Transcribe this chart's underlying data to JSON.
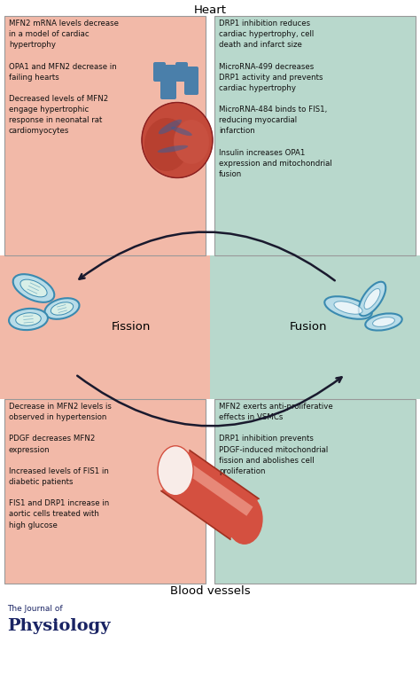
{
  "title_top": "Heart",
  "title_bottom": "Blood vessels",
  "top_left_text": "MFN2 mRNA levels decrease\nin a model of cardiac\nhypertrophy\n\nOPA1 and MFN2 decrease in\nfailing hearts\n\nDecreased levels of MFN2\nengage hypertrophic\nresponse in neonatal rat\ncardiomyocytes",
  "top_right_text": "DRP1 inhibition reduces\ncardiac hypertrophy, cell\ndeath and infarct size\n\nMicroRNA-499 decreases\nDRP1 activity and prevents\ncardiac hypertrophy\n\nMicroRNA-484 binds to FIS1,\nreducing myocardial\ninfarction\n\nInsulin increases OPA1\nexpression and mitochondrial\nfusion",
  "bottom_left_text": "Decrease in MFN2 levels is\nobserved in hypertension\n\nPDGF decreases MFN2\nexpression\n\nIncreased levels of FIS1 in\ndiabetic patients\n\nFIS1 and DRP1 increase in\naortic cells treated with\nhigh glucose",
  "bottom_right_text": "MFN2 exerts anti-proliferative\neffects in VSMCs\n\nDRP1 inhibition prevents\nPDGF-induced mitochondrial\nfission and abolishes cell\nproliferation",
  "fission_label": "Fission",
  "fusion_label": "Fusion",
  "bg_left_color": "#f2b9a8",
  "bg_right_color": "#b8d8cc",
  "box_border_color": "#999999",
  "text_color": "#111111",
  "journal_line1": "The Journal of",
  "journal_line2": "Physiology",
  "journal_color": "#1a2464",
  "mito_fill": "#b8dce8",
  "mito_inner": "#d8efe8",
  "mito_edge": "#3a8ab0",
  "arrow_color": "#1a1a2e",
  "heart_red": "#c44a3a",
  "heart_dark": "#8b2020",
  "heart_blue": "#4a7faa",
  "vessel_red": "#d45040",
  "vessel_light": "#f0a090",
  "vessel_white": "#f8ece8"
}
